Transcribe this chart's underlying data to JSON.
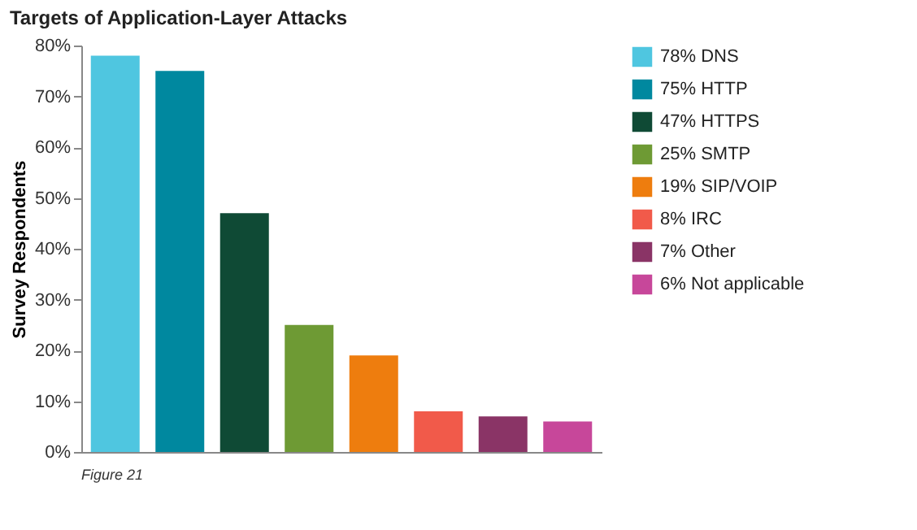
{
  "chart_data": {
    "type": "bar",
    "title": "Targets of Application-Layer Attacks",
    "ylabel": "Survey Respondents",
    "categories": [
      null,
      null,
      null,
      null,
      null,
      null,
      null,
      null
    ],
    "series": [
      {
        "name": "78% DNS",
        "color": "#4fc6e0",
        "values": [
          78,
          null,
          null,
          null,
          null,
          null,
          null,
          null
        ]
      },
      {
        "name": "75% HTTP",
        "color": "#00889f",
        "values": [
          null,
          75,
          null,
          null,
          null,
          null,
          null,
          null
        ]
      },
      {
        "name": "47% HTTPS",
        "color": "#0f4a35",
        "values": [
          null,
          null,
          47,
          null,
          null,
          null,
          null,
          null
        ]
      },
      {
        "name": "25% SMTP",
        "color": "#6e9a34",
        "values": [
          null,
          null,
          null,
          25,
          null,
          null,
          null,
          null
        ]
      },
      {
        "name": "19% SIP/VOIP",
        "color": "#ee7d0e",
        "values": [
          null,
          null,
          null,
          null,
          19,
          null,
          null,
          null
        ]
      },
      {
        "name": "8% IRC",
        "color": "#f15a4a",
        "values": [
          null,
          null,
          null,
          null,
          null,
          8,
          null,
          null
        ]
      },
      {
        "name": "7% Other",
        "color": "#8a3466",
        "values": [
          null,
          null,
          null,
          null,
          null,
          null,
          7,
          null
        ]
      },
      {
        "name": "6% Not applicable",
        "color": "#c7479a",
        "values": [
          null,
          null,
          null,
          null,
          null,
          null,
          null,
          6
        ]
      }
    ],
    "ylim": [
      0,
      80
    ],
    "yticks": [
      {
        "value": 0,
        "label": "0%"
      },
      {
        "value": 10,
        "label": "10%"
      },
      {
        "value": 20,
        "label": "20%"
      },
      {
        "value": 30,
        "label": "30%"
      },
      {
        "value": 40,
        "label": "40%"
      },
      {
        "value": 50,
        "label": "50%"
      },
      {
        "value": 60,
        "label": "60%"
      },
      {
        "value": 70,
        "label": "70%"
      },
      {
        "value": 80,
        "label": "80%"
      }
    ],
    "tick_labels": "y",
    "grid": false,
    "legend": "right",
    "annotations": [
      "Figure 21"
    ]
  }
}
